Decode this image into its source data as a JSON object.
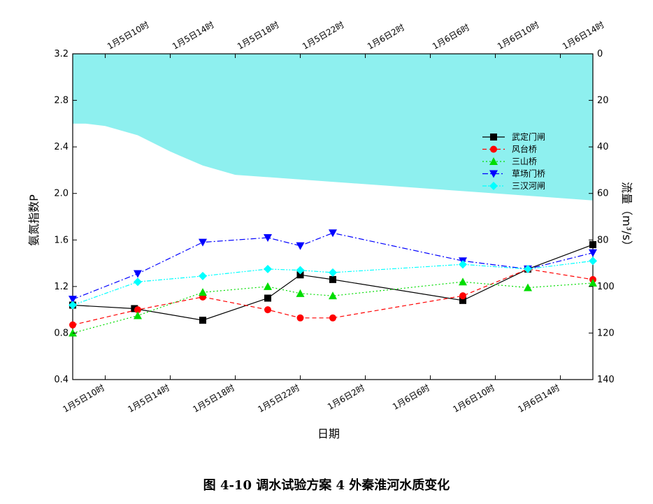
{
  "caption": "图 4-10    调水试验方案 4 外秦淮河水质变化",
  "chart_data": {
    "type": "line",
    "xlabel": "日期",
    "ylabel_left": "氨氮指数P",
    "ylabel_right": "流量（m³/s）",
    "ylim_left": [
      0.4,
      3.2
    ],
    "yticks_left": [
      "0.4",
      "0.8",
      "1.2",
      "1.6",
      "2.0",
      "2.4",
      "2.8",
      "3.2"
    ],
    "ylim_right": [
      0,
      140
    ],
    "yticks_right": [
      "0",
      "20",
      "40",
      "60",
      "80",
      "100",
      "120",
      "140"
    ],
    "x_range_hours": [
      0,
      32
    ],
    "x_ticks_bottom": [
      {
        "t": 2,
        "label": "1月5日10时"
      },
      {
        "t": 6,
        "label": "1月5日14时"
      },
      {
        "t": 10,
        "label": "1月5日18时"
      },
      {
        "t": 14,
        "label": "1月5日22时"
      },
      {
        "t": 18,
        "label": "1月6日2时"
      },
      {
        "t": 22,
        "label": "1月6日6时"
      },
      {
        "t": 26,
        "label": "1月6日10时"
      },
      {
        "t": 30,
        "label": "1月6日14时"
      }
    ],
    "x_ticks_top": [
      {
        "t": 2,
        "label": "1月5日10时"
      },
      {
        "t": 6,
        "label": "1月5日14时"
      },
      {
        "t": 10,
        "label": "1月5日18时"
      },
      {
        "t": 14,
        "label": "1月5日22时"
      },
      {
        "t": 18,
        "label": "1月6日2时"
      },
      {
        "t": 22,
        "label": "1月6日6时"
      },
      {
        "t": 26,
        "label": "1月6日10时"
      },
      {
        "t": 30,
        "label": "1月6日14时"
      }
    ],
    "flow": {
      "color": "#8ef0ef",
      "t": [
        0,
        0.8,
        2,
        4,
        6,
        8,
        10,
        12,
        16,
        20,
        24,
        28,
        32
      ],
      "values": [
        30,
        30,
        31,
        35,
        42,
        48,
        52,
        53,
        55,
        57,
        59,
        61,
        63
      ]
    },
    "series": [
      {
        "name": "武定门闸",
        "color": "#000000",
        "marker": "square",
        "dash": "",
        "t": [
          0,
          3.8,
          8,
          12,
          14,
          16,
          24,
          28,
          32
        ],
        "values": [
          1.04,
          1.01,
          0.91,
          1.1,
          1.3,
          1.26,
          1.08,
          1.35,
          1.56
        ]
      },
      {
        "name": "风台桥",
        "color": "#ff0000",
        "marker": "circle",
        "dash": "6,4",
        "t": [
          0,
          4,
          8,
          12,
          14,
          16,
          24,
          28,
          32
        ],
        "values": [
          0.87,
          1.0,
          1.11,
          1.0,
          0.93,
          0.93,
          1.12,
          1.35,
          1.26
        ]
      },
      {
        "name": "三山桥",
        "color": "#00dd00",
        "marker": "triangle-up",
        "dash": "2,3",
        "t": [
          0,
          4,
          8,
          12,
          14,
          16,
          24,
          28,
          32
        ],
        "values": [
          0.8,
          0.95,
          1.15,
          1.2,
          1.14,
          1.12,
          1.24,
          1.19,
          1.23
        ]
      },
      {
        "name": "草场门桥",
        "color": "#0000ff",
        "marker": "triangle-down",
        "dash": "8,3,2,3",
        "t": [
          0,
          4,
          8,
          12,
          14,
          16,
          24,
          28,
          32
        ],
        "values": [
          1.09,
          1.31,
          1.58,
          1.62,
          1.55,
          1.66,
          1.42,
          1.35,
          1.49
        ]
      },
      {
        "name": "三汉河闸",
        "color": "#00ffff",
        "marker": "diamond",
        "dash": "6,2,2,2,2,2",
        "t": [
          0,
          4,
          8,
          12,
          14,
          16,
          24,
          28,
          32
        ],
        "values": [
          1.04,
          1.24,
          1.29,
          1.35,
          1.34,
          1.32,
          1.39,
          1.35,
          1.42
        ]
      }
    ],
    "legend_position": "upper-right"
  }
}
